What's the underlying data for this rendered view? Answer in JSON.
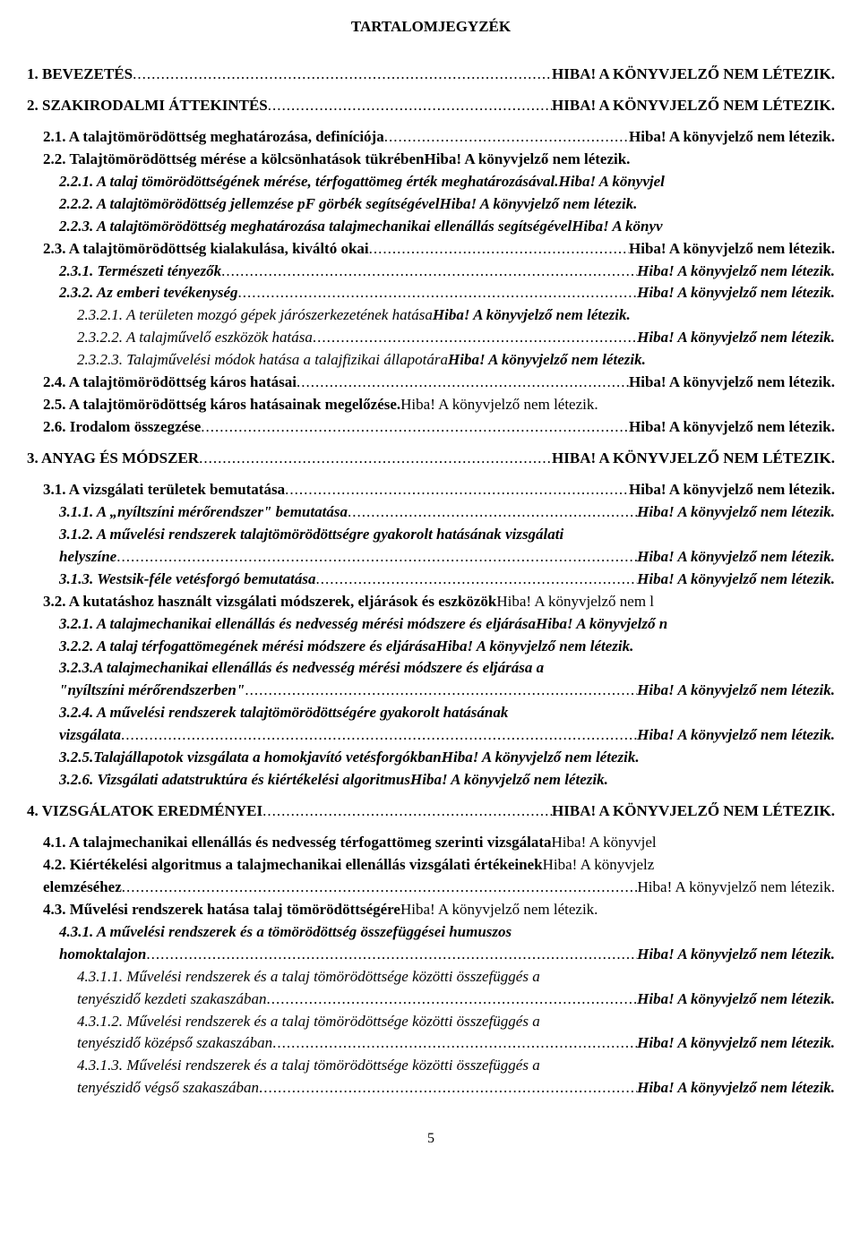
{
  "title": "TARTALOMJEGYZÉK",
  "page_number": "5",
  "ref_error_upper": "HIBA! A KÖNYVJELZŐ NEM LÉTEZIK.",
  "ref_error": "Hiba! A könyvjelző nem létezik.",
  "ref_error_trunc_jel": "Hiba! A könyvjel",
  "ref_error_trunc_konyv": "Hiba! A könyv",
  "ref_error_bold": "Hiba! A könyvjelző nem létezik.",
  "ref_error_trunc_nem_lo": "Hiba! A könyvjelző nem l",
  "ref_error_trunc_jelzo": "Hiba! A könyvjelz",
  "ref_error_trunc_n": "Hiba! A könyvjelző n",
  "ref_error_trunc_jel_spc": "Hiba! A könyvjel",
  "toc": [
    {
      "id": "e1",
      "label": "1. BEVEZETÉS",
      "ref": "HIBA! A KÖNYVJELZŐ NEM LÉTEZIK.",
      "leader": true,
      "style": "bold",
      "indent": 0,
      "gap": false,
      "space_before_ref": true
    },
    {
      "id": "e2",
      "label": "2. SZAKIRODALMI ÁTTEKINTÉS",
      "ref": "HIBA! A KÖNYVJELZŐ NEM LÉTEZIK.",
      "leader": true,
      "style": "bold",
      "indent": 0,
      "gap": true,
      "space_before_ref": true
    },
    {
      "id": "e3",
      "label": "2.1. A talajtömörödöttség meghatározása, definíciója",
      "ref": "Hiba! A könyvjelző nem létezik.",
      "leader": true,
      "style": "bold",
      "indent": 1,
      "gap": true,
      "space_before_ref": true
    },
    {
      "id": "e4",
      "label": "2.2. Talajtömörödöttség mérése a kölcsönhatások tükrében",
      "ref": "Hiba! A könyvjelző nem létezik.",
      "leader": false,
      "style": "bold",
      "indent": 1,
      "gap": false,
      "space_before_ref": false
    },
    {
      "id": "e5",
      "label": "2.2.1. A talaj tömörödöttségének mérése, térfogattömeg érték meghatározásával.",
      "ref": "Hiba! A könyvjel",
      "leader": false,
      "style": "bolditalic",
      "indent": 2,
      "gap": false,
      "space_before_ref": false
    },
    {
      "id": "e6",
      "label": "2.2.2. A talajtömörödöttség jellemzése pF görbék segítségével",
      "ref": "Hiba! A könyvjelző nem létezik.",
      "leader": false,
      "style": "bolditalic",
      "indent": 2,
      "gap": false,
      "space_before_ref": false
    },
    {
      "id": "e7",
      "label": "2.2.3. A talajtömörödöttség meghatározása talajmechanikai ellenállás segítségével",
      "ref": "Hiba! A könyv",
      "leader": false,
      "style": "bolditalic",
      "indent": 2,
      "gap": false,
      "space_before_ref": false
    },
    {
      "id": "e8",
      "label": "2.3. A talajtömörödöttség kialakulása, kiváltó okai",
      "ref": "Hiba! A könyvjelző nem létezik.",
      "leader": true,
      "style": "bold",
      "indent": 1,
      "gap": false,
      "space_before_ref": true
    },
    {
      "id": "e9",
      "label": "2.3.1. Természeti tényezők",
      "ref": "Hiba! A könyvjelző nem létezik.",
      "leader": true,
      "style": "bolditalic",
      "indent": 2,
      "gap": false,
      "space_before_ref": true
    },
    {
      "id": "e10",
      "label": "2.3.2. Az emberi tevékenység",
      "ref": "Hiba! A könyvjelző nem létezik.",
      "leader": true,
      "style": "bolditalic",
      "indent": 2,
      "gap": false,
      "space_before_ref": true
    },
    {
      "id": "e11",
      "label": "2.3.2.1. A területen mozgó gépek járószerkezetének hatása",
      "ref": "Hiba! A könyvjelző nem létezik.",
      "leader": false,
      "style": "italic",
      "indent": 3,
      "gap": false,
      "space_before_ref": false,
      "ref_style": "bolditalic"
    },
    {
      "id": "e12",
      "label": "2.3.2.2. A talajművelő eszközök hatása",
      "ref": "Hiba! A könyvjelző nem létezik.",
      "leader": true,
      "style": "italic",
      "indent": 3,
      "gap": false,
      "space_before_ref": true,
      "ref_style": "bolditalic"
    },
    {
      "id": "e13",
      "label": "2.3.2.3. Talajművelési módok hatása a talajfizikai állapotára",
      "ref": "Hiba! A könyvjelző nem létezik.",
      "leader": false,
      "style": "italic",
      "indent": 3,
      "gap": false,
      "space_before_ref": false,
      "ref_style": "bolditalic"
    },
    {
      "id": "e14",
      "label": "2.4. A talajtömörödöttség káros hatásai",
      "ref": "Hiba! A könyvjelző nem létezik.",
      "leader": true,
      "style": "bold",
      "indent": 1,
      "gap": false,
      "space_before_ref": true
    },
    {
      "id": "e15",
      "label": "2.5. A talajtömörödöttség káros hatásainak megelőzése.",
      "ref": "Hiba! A könyvjelző nem létezik.",
      "leader": false,
      "style": "bold",
      "indent": 1,
      "gap": false,
      "space_before_ref": true,
      "ref_style": "normal"
    },
    {
      "id": "e16",
      "label": "2.6. Irodalom összegzése",
      "ref": "Hiba! A könyvjelző nem létezik.",
      "leader": true,
      "style": "bold",
      "indent": 1,
      "gap": false,
      "space_before_ref": true
    },
    {
      "id": "e17",
      "label": "3. ANYAG ÉS MÓDSZER",
      "ref": "HIBA! A KÖNYVJELZŐ NEM LÉTEZIK.",
      "leader": true,
      "style": "bold",
      "indent": 0,
      "gap": true,
      "space_before_ref": true
    },
    {
      "id": "e18",
      "label": "3.1. A vizsgálati területek bemutatása",
      "ref": "Hiba! A könyvjelző nem létezik.",
      "leader": true,
      "style": "bold",
      "indent": 1,
      "gap": true,
      "space_before_ref": true
    },
    {
      "id": "e19",
      "label": "3.1.1. A „nyíltszíni mérőrendszer\" bemutatása",
      "ref": "Hiba! A könyvjelző nem létezik.",
      "leader": true,
      "style": "bolditalic",
      "indent": 2,
      "gap": false,
      "space_before_ref": true
    },
    {
      "id": "e20",
      "label": "3.1.2. A művelési rendszerek talajtömörödöttségre gyakorolt hatásának vizsgálati",
      "ref": "",
      "leader": false,
      "style": "bolditalic",
      "indent": 2,
      "gap": false,
      "space_before_ref": false
    },
    {
      "id": "e21",
      "label": "helyszíne",
      "ref": "Hiba! A könyvjelző nem létezik.",
      "leader": true,
      "style": "bolditalic",
      "indent": 2,
      "gap": false,
      "space_before_ref": true
    },
    {
      "id": "e22",
      "label": "3.1.3. Westsik-féle vetésforgó bemutatása",
      "ref": "Hiba! A könyvjelző nem létezik.",
      "leader": true,
      "style": "bolditalic",
      "indent": 2,
      "gap": false,
      "space_before_ref": true
    },
    {
      "id": "e23",
      "label": "3.2. A kutatáshoz használt vizsgálati módszerek, eljárások és eszközök",
      "ref": "Hiba! A könyvjelző nem l",
      "leader": false,
      "style": "bold",
      "indent": 1,
      "gap": false,
      "space_before_ref": false,
      "ref_style": "normal"
    },
    {
      "id": "e24",
      "label": "3.2.1. A talajmechanikai ellenállás és nedvesség mérési módszere és eljárása",
      "ref": "Hiba! A könyvjelző n",
      "leader": false,
      "style": "bolditalic",
      "indent": 2,
      "gap": false,
      "space_before_ref": false
    },
    {
      "id": "e25",
      "label": "3.2.2. A talaj térfogattömegének mérési módszere és eljárása",
      "ref": "Hiba! A könyvjelző nem létezik.",
      "leader": false,
      "style": "bolditalic",
      "indent": 2,
      "gap": false,
      "space_before_ref": false
    },
    {
      "id": "e26",
      "label": "3.2.3.A talajmechanikai ellenállás és nedvesség mérési módszere és eljárása a",
      "ref": "",
      "leader": false,
      "style": "bolditalic",
      "indent": 2,
      "gap": false,
      "space_before_ref": false
    },
    {
      "id": "e27",
      "label": "\"nyíltszíni mérőrendszerben\"",
      "ref": "Hiba! A könyvjelző nem létezik.",
      "leader": true,
      "style": "bolditalic",
      "indent": 2,
      "gap": false,
      "space_before_ref": true
    },
    {
      "id": "e28",
      "label": "3.2.4. A művelési rendszerek talajtömörödöttségére gyakorolt hatásának",
      "ref": "",
      "leader": false,
      "style": "bolditalic",
      "indent": 2,
      "gap": false,
      "space_before_ref": false
    },
    {
      "id": "e29",
      "label": "vizsgálata",
      "ref": "Hiba! A könyvjelző nem létezik.",
      "leader": true,
      "style": "bolditalic",
      "indent": 2,
      "gap": false,
      "space_before_ref": true
    },
    {
      "id": "e30",
      "label": "3.2.5.Talajállapotok vizsgálata a homokjavító vetésforgókban",
      "ref": "Hiba! A könyvjelző nem létezik.",
      "leader": false,
      "style": "bolditalic",
      "indent": 2,
      "gap": false,
      "space_before_ref": false
    },
    {
      "id": "e31",
      "label": "3.2.6. Vizsgálati adatstruktúra és kiértékelési algoritmus",
      "ref": "Hiba! A könyvjelző nem létezik.",
      "leader": false,
      "style": "bolditalic",
      "indent": 2,
      "gap": false,
      "space_before_ref": true
    },
    {
      "id": "e32",
      "label": "4. VIZSGÁLATOK EREDMÉNYEI",
      "ref": "HIBA! A KÖNYVJELZŐ NEM LÉTEZIK.",
      "leader": true,
      "style": "bold",
      "indent": 0,
      "gap": true,
      "space_before_ref": true
    },
    {
      "id": "e33",
      "label": "4.1. A talajmechanikai ellenállás és nedvesség térfogattömeg szerinti vizsgálata",
      "ref": "Hiba! A könyvjel",
      "leader": false,
      "style": "bold",
      "indent": 1,
      "gap": true,
      "space_before_ref": false,
      "ref_style": "normal"
    },
    {
      "id": "e34",
      "label": "4.2. Kiértékelési algoritmus a talajmechanikai ellenállás vizsgálati értékeinek",
      "ref": "Hiba! A könyvjelz",
      "leader": false,
      "style": "bold",
      "indent": 1,
      "gap": false,
      "space_before_ref": false,
      "ref_style": "normal"
    },
    {
      "id": "e35",
      "label": "elemzéséhez",
      "ref": "Hiba! A könyvjelző nem létezik.",
      "leader": true,
      "style": "bold",
      "indent": 1,
      "gap": false,
      "space_before_ref": true,
      "ref_style": "normal"
    },
    {
      "id": "e36",
      "label": "4.3. Művelési rendszerek hatása talaj tömörödöttségére",
      "ref": "Hiba! A könyvjelző nem létezik.",
      "leader": false,
      "style": "bold",
      "indent": 1,
      "gap": false,
      "space_before_ref": true,
      "ref_style": "normal"
    },
    {
      "id": "e37",
      "label": "4.3.1. A művelési rendszerek és a tömörödöttség összefüggései humuszos",
      "ref": "",
      "leader": false,
      "style": "bolditalic",
      "indent": 2,
      "gap": false,
      "space_before_ref": false
    },
    {
      "id": "e38",
      "label": "homoktalajon",
      "ref": "Hiba! A könyvjelző nem létezik.",
      "leader": true,
      "style": "bolditalic",
      "indent": 2,
      "gap": false,
      "space_before_ref": true
    },
    {
      "id": "e39",
      "label": "4.3.1.1. Művelési rendszerek és a talaj tömörödöttsége közötti összefüggés a",
      "ref": "",
      "leader": false,
      "style": "italic",
      "indent": 3,
      "gap": false,
      "space_before_ref": false
    },
    {
      "id": "e40",
      "label": "tenyészidő kezdeti szakaszában",
      "ref": "Hiba! A könyvjelző nem létezik.",
      "leader": true,
      "style": "italic",
      "indent": 3,
      "gap": false,
      "space_before_ref": true,
      "ref_style": "bolditalic"
    },
    {
      "id": "e41",
      "label": "4.3.1.2. Művelési rendszerek és a talaj tömörödöttsége közötti összefüggés a",
      "ref": "",
      "leader": false,
      "style": "italic",
      "indent": 3,
      "gap": false,
      "space_before_ref": false
    },
    {
      "id": "e42",
      "label": "tenyészidő középső szakaszában",
      "ref": "Hiba! A könyvjelző nem létezik.",
      "leader": true,
      "style": "italic",
      "indent": 3,
      "gap": false,
      "space_before_ref": true,
      "ref_style": "bolditalic"
    },
    {
      "id": "e43",
      "label": "4.3.1.3. Művelési rendszerek és a talaj tömörödöttsége közötti összefüggés a",
      "ref": "",
      "leader": false,
      "style": "italic",
      "indent": 3,
      "gap": false,
      "space_before_ref": false
    },
    {
      "id": "e44",
      "label": "tenyészidő végső szakaszában",
      "ref": "Hiba! A könyvjelző nem létezik.",
      "leader": true,
      "style": "italic",
      "indent": 3,
      "gap": false,
      "space_before_ref": true,
      "ref_style": "bolditalic"
    }
  ]
}
